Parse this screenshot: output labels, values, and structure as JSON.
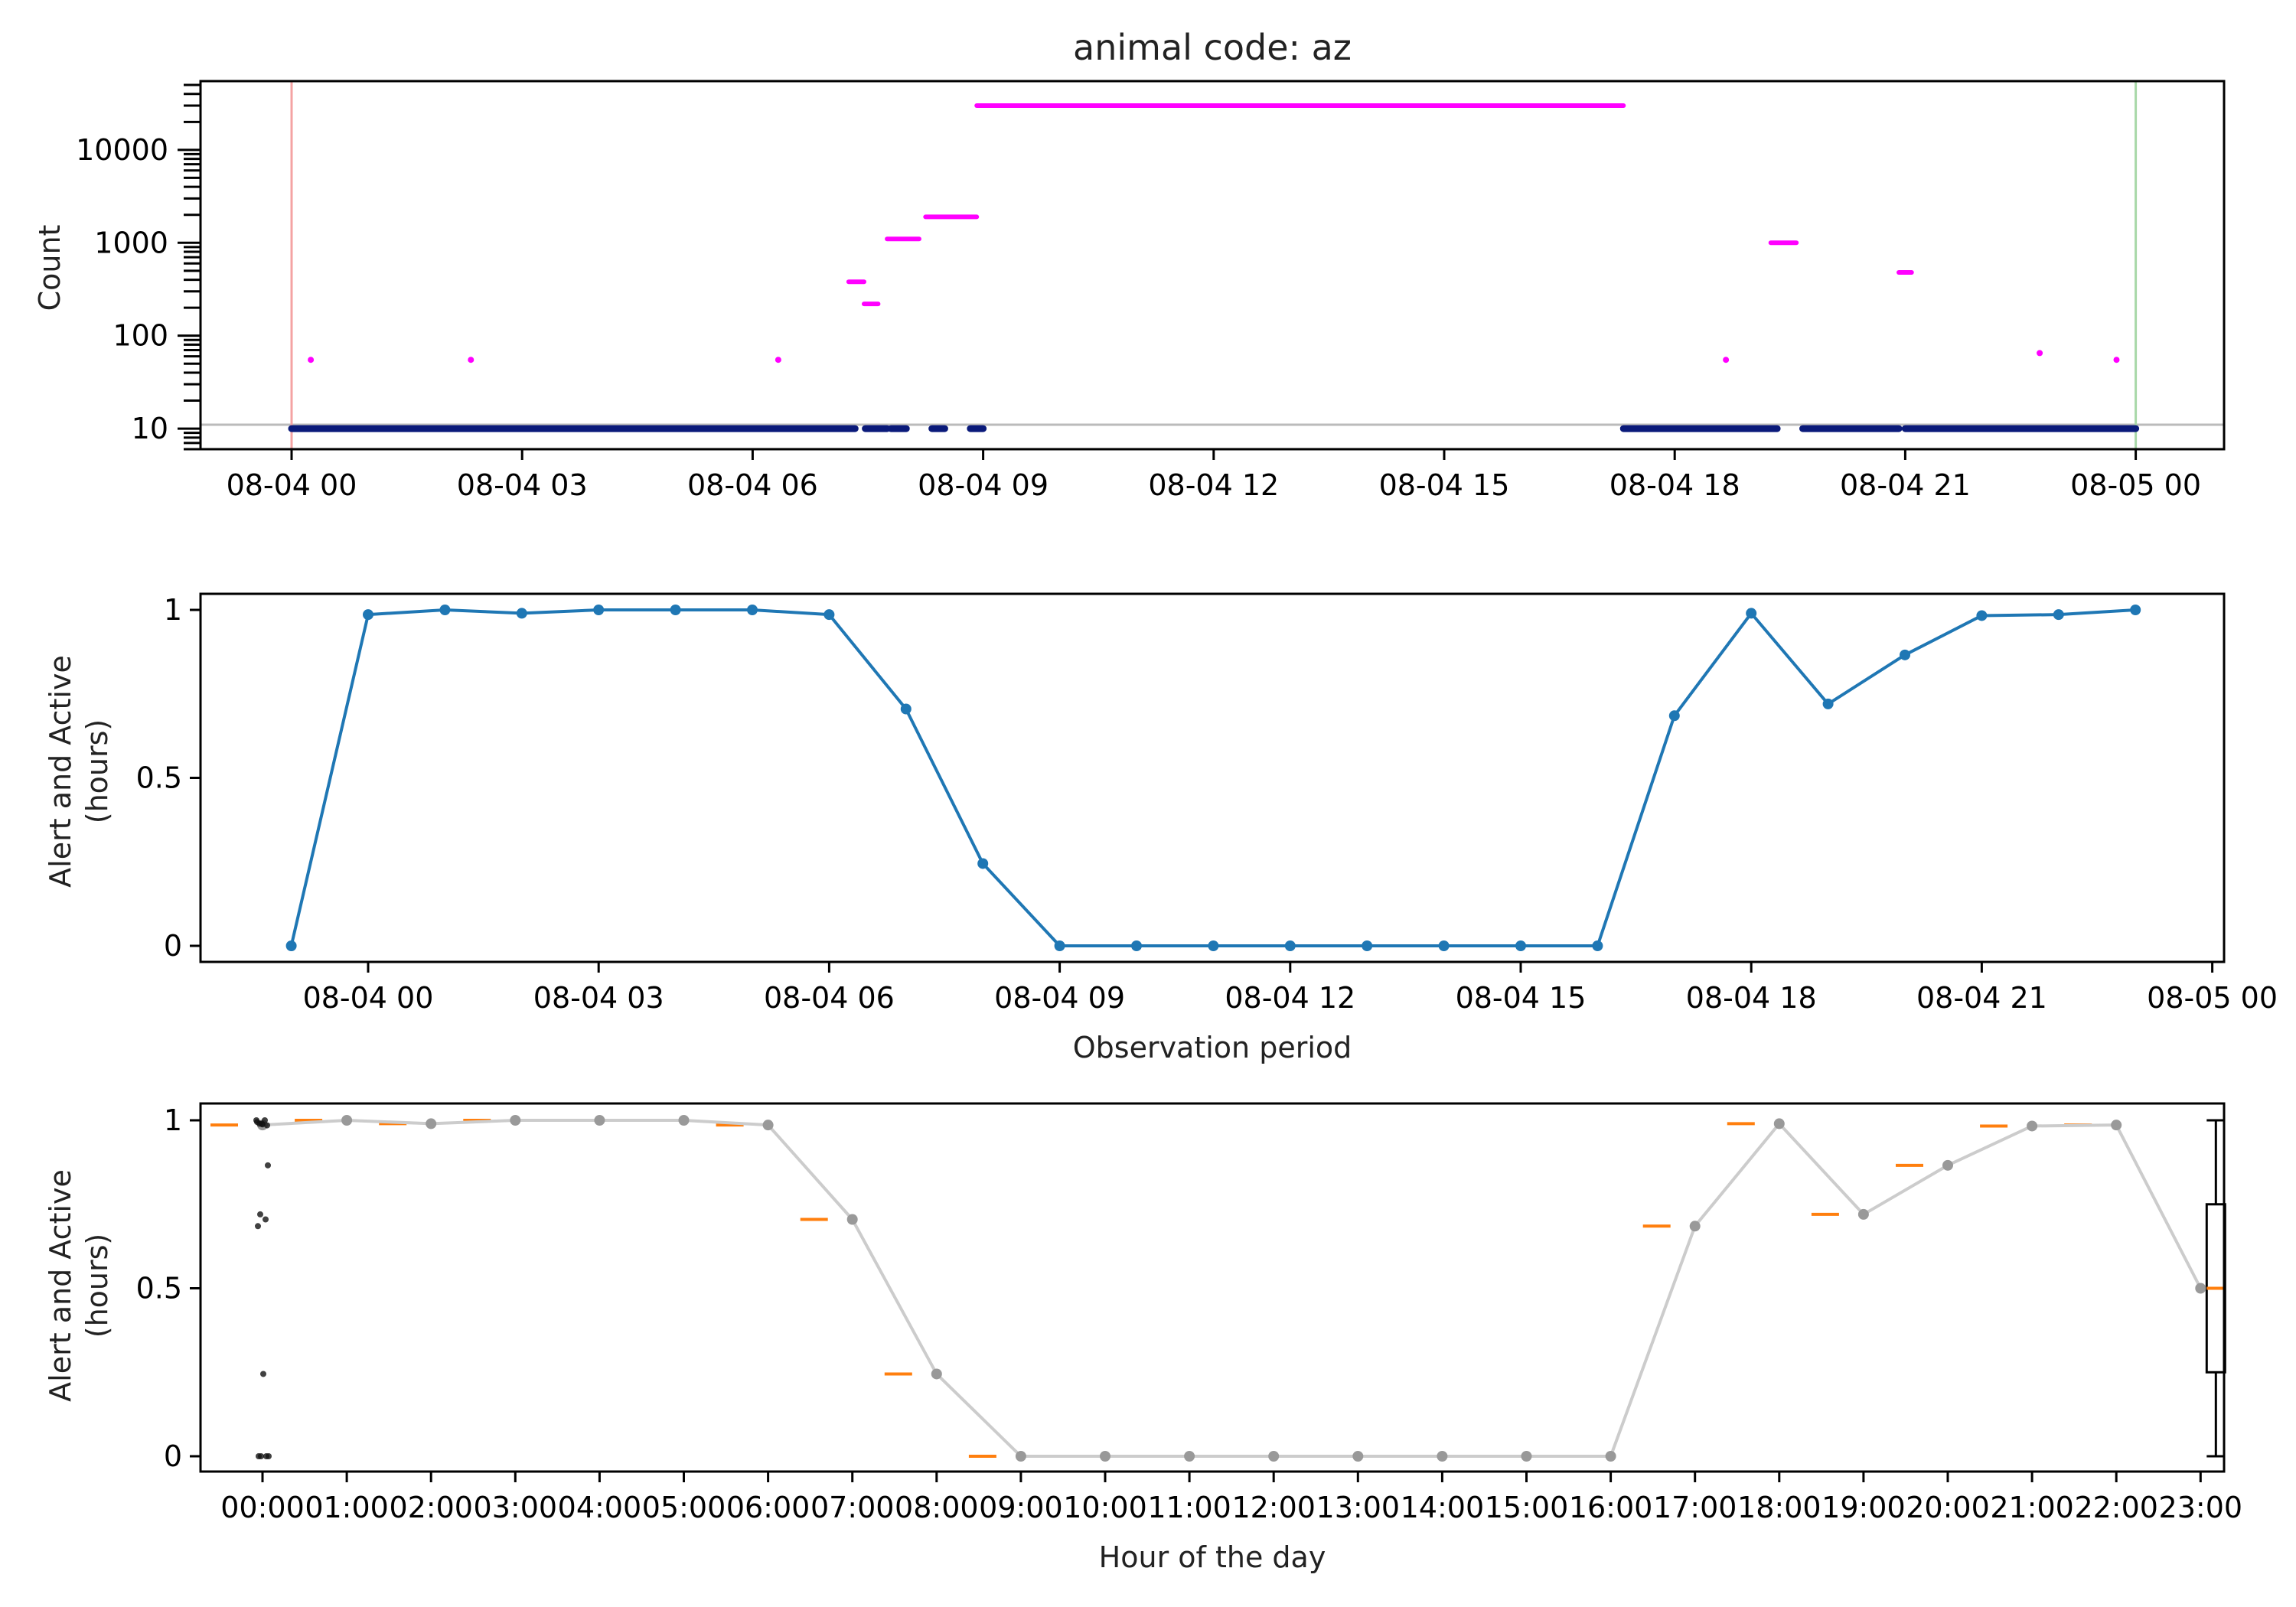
{
  "chart_data": [
    {
      "type": "scatter",
      "title": "animal code: az",
      "xlabel": "",
      "ylabel": "Count",
      "yscale": "log",
      "ylim": [
        6,
        55000
      ],
      "xlim": [
        "08-03 23:00",
        "08-05 00:15"
      ],
      "x_ticks": [
        "08-04 00",
        "08-04 03",
        "08-04 06",
        "08-04 09",
        "08-04 12",
        "08-04 15",
        "08-04 18",
        "08-04 21",
        "08-05 00"
      ],
      "y_ticks": [
        "10",
        "100",
        "1000",
        "10000"
      ],
      "reference_lines": {
        "horizontal": {
          "y": 11,
          "color": "#bbbbbb"
        },
        "vertical": [
          {
            "x": "08-04 00:00",
            "color": "#f4a3a3"
          },
          {
            "x": "08-05 00:00",
            "color": "#a8d8a8"
          }
        ]
      },
      "colors": {
        "low": "#0a1a7a",
        "high": "#ff00ff"
      },
      "series": [
        {
          "color_key": "low",
          "segments": [
            {
              "start": "08-04 00:00",
              "end": "08-04 07:20",
              "y": 10
            },
            {
              "start": "08-04 07:28",
              "end": "08-04 07:45",
              "y": 10
            },
            {
              "start": "08-04 07:48",
              "end": "08-04 08:00",
              "y": 10
            },
            {
              "start": "08-04 08:20",
              "end": "08-04 08:30",
              "y": 10
            },
            {
              "start": "08-04 08:50",
              "end": "08-04 09:00",
              "y": 10
            },
            {
              "start": "08-04 17:20",
              "end": "08-04 19:20",
              "y": 10
            },
            {
              "start": "08-04 19:40",
              "end": "08-04 20:55",
              "y": 10
            },
            {
              "start": "08-04 21:00",
              "end": "08-05 00:00",
              "y": 10
            }
          ]
        },
        {
          "color_key": "high",
          "segments": [
            {
              "start": "08-04 07:15",
              "end": "08-04 07:27",
              "y": 380
            },
            {
              "start": "08-04 07:27",
              "end": "08-04 07:38",
              "y": 220
            },
            {
              "start": "08-04 07:45",
              "end": "08-04 08:10",
              "y": 1100
            },
            {
              "start": "08-04 08:15",
              "end": "08-04 08:55",
              "y": 1900
            },
            {
              "start": "08-04 08:55",
              "end": "08-04 17:20",
              "y": 30000
            },
            {
              "start": "08-04 19:15",
              "end": "08-04 19:35",
              "y": 1000
            },
            {
              "start": "08-04 20:55",
              "end": "08-04 21:05",
              "y": 480
            }
          ],
          "points": [
            {
              "x": "08-04 00:15",
              "y": 55
            },
            {
              "x": "08-04 02:20",
              "y": 55
            },
            {
              "x": "08-04 06:20",
              "y": 55
            },
            {
              "x": "08-04 18:40",
              "y": 55
            },
            {
              "x": "08-04 22:45",
              "y": 65
            },
            {
              "x": "08-04 23:45",
              "y": 55
            }
          ]
        }
      ]
    },
    {
      "type": "line",
      "title": "",
      "xlabel": "Observation period",
      "ylabel": "Alert and Active\n(hours)",
      "ylim": [
        0,
        1
      ],
      "x_ticks": [
        "08-04 00",
        "08-04 03",
        "08-04 06",
        "08-04 09",
        "08-04 12",
        "08-04 15",
        "08-04 18",
        "08-04 21",
        "08-05 00"
      ],
      "y_ticks": [
        "0",
        "0.5",
        "1"
      ],
      "color": "#1f77b4",
      "x": [
        "08-03 23:00",
        "08-04 00:00",
        "08-04 01:00",
        "08-04 02:00",
        "08-04 03:00",
        "08-04 04:00",
        "08-04 05:00",
        "08-04 06:00",
        "08-04 07:00",
        "08-04 08:00",
        "08-04 09:00",
        "08-04 10:00",
        "08-04 11:00",
        "08-04 12:00",
        "08-04 13:00",
        "08-04 14:00",
        "08-04 15:00",
        "08-04 16:00",
        "08-04 17:00",
        "08-04 18:00",
        "08-04 19:00",
        "08-04 20:00",
        "08-04 21:00",
        "08-04 22:00",
        "08-04 23:00"
      ],
      "values": [
        0,
        0.986,
        1.0,
        0.99,
        1.0,
        1.0,
        1.0,
        0.986,
        0.705,
        0.245,
        0,
        0,
        0,
        0,
        0,
        0,
        0,
        0,
        0.685,
        0.99,
        0.72,
        0.866,
        0.983,
        0.986,
        1.0
      ]
    },
    {
      "type": "scatter",
      "title": "",
      "xlabel": "Hour of the day",
      "ylabel": "Alert and Active\n(hours)",
      "ylim": [
        0,
        1
      ],
      "categories": [
        "00:00",
        "01:00",
        "02:00",
        "03:00",
        "04:00",
        "05:00",
        "06:00",
        "07:00",
        "08:00",
        "09:00",
        "10:00",
        "11:00",
        "12:00",
        "13:00",
        "14:00",
        "15:00",
        "16:00",
        "17:00",
        "18:00",
        "19:00",
        "20:00",
        "21:00",
        "22:00",
        "23:00"
      ],
      "y_ticks": [
        "0",
        "0.5",
        "1"
      ],
      "line_color": "#cccccc",
      "median_color": "#ff7f0e",
      "values": [
        0.986,
        1.0,
        0.99,
        1.0,
        1.0,
        1.0,
        0.986,
        0.705,
        0.245,
        0,
        0,
        0,
        0,
        0,
        0,
        0,
        0,
        0.685,
        0.99,
        0.72,
        0.866,
        0.983,
        0.986,
        0.5
      ],
      "jitter_points_00": [
        1.0,
        0.99,
        0.985,
        0.99,
        1.0,
        0.995,
        0.988,
        0.866,
        0.72,
        0.705,
        0.685,
        0.245,
        0,
        0,
        0,
        0
      ],
      "boxplot_23": {
        "min": 0,
        "q1": 0.25,
        "median": 0.5,
        "q3": 0.75,
        "max": 1.0
      }
    }
  ]
}
